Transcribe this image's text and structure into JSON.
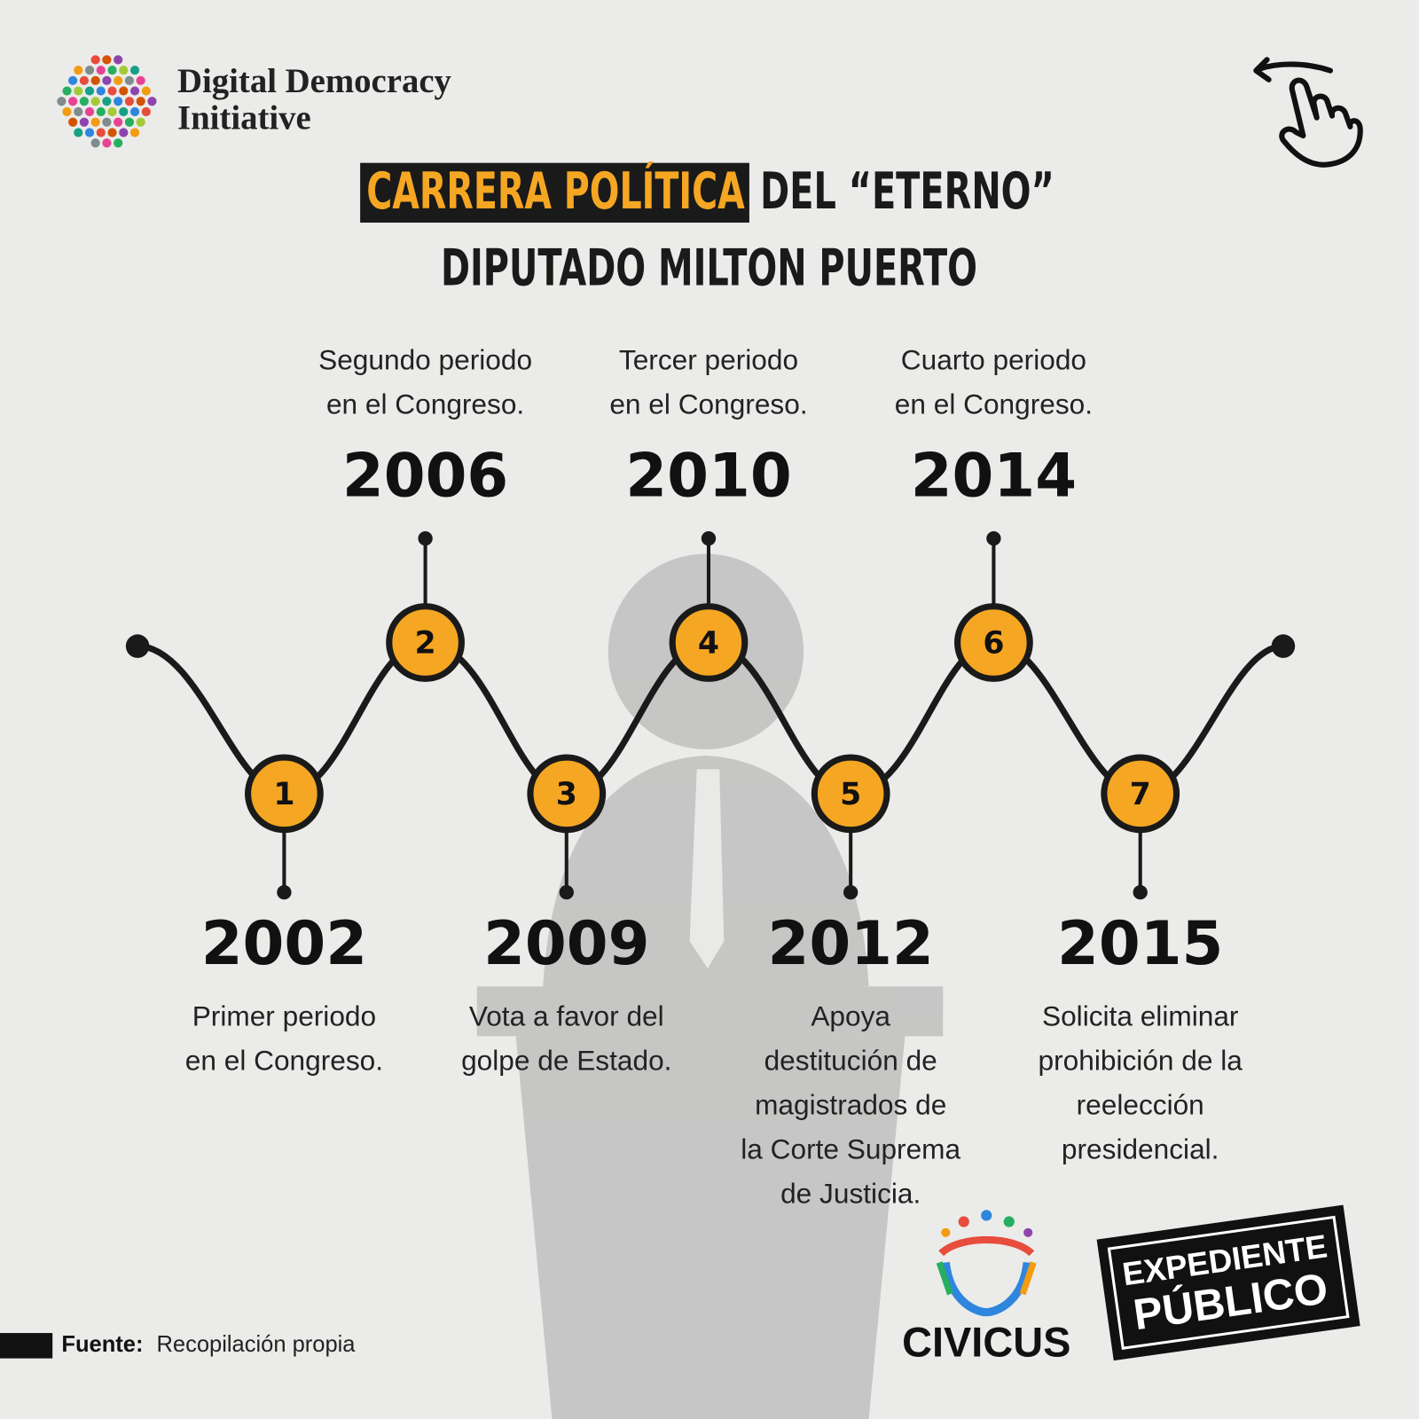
{
  "logo": {
    "line1": "Digital Democracy",
    "line2": "Initiative"
  },
  "title": {
    "highlight": "CARRERA POLÍTICA",
    "rest": "DEL “ETERNO”",
    "line2": "DIPUTADO MILTON PUERTO"
  },
  "events": [
    {
      "number": 1,
      "year": 2002,
      "description": [
        "Primer periodo",
        "en el Congreso."
      ]
    },
    {
      "number": 2,
      "year": 2006,
      "description": [
        "Segundo periodo",
        "en el Congreso."
      ]
    },
    {
      "number": 3,
      "year": 2009,
      "description": [
        "Vota a favor del",
        "golpe de Estado."
      ]
    },
    {
      "number": 4,
      "year": 2010,
      "description": [
        "Tercer periodo",
        "en el Congreso."
      ]
    },
    {
      "number": 5,
      "year": 2012,
      "description": [
        "Apoya",
        "destitución de",
        "magistrados de",
        "la Corte Suprema",
        "de Justicia."
      ]
    },
    {
      "number": 6,
      "year": 2014,
      "description": [
        "Cuarto periodo",
        "en el Congreso."
      ]
    },
    {
      "number": 7,
      "year": 2015,
      "description": [
        "Solicita eliminar",
        "prohibición de la",
        "reelección",
        "presidencial."
      ]
    }
  ],
  "footer": {
    "source_label": "Fuente:",
    "source": "Recopilación propia",
    "civicus": "CIVICUS",
    "expediente": "EXPEDIENTE",
    "publico": "PÚBLICO"
  }
}
